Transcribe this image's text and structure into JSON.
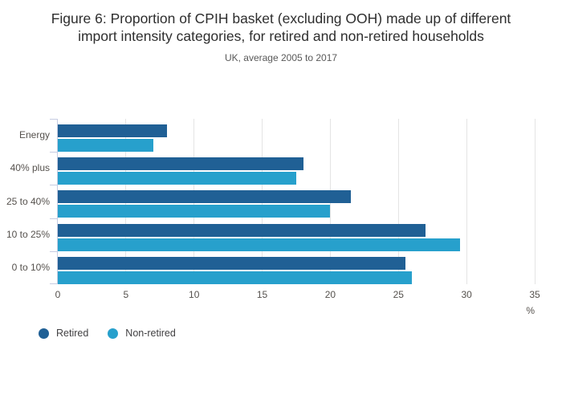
{
  "header": {
    "title_line1": "Figure 6: Proportion of CPIH basket (excluding OOH) made up of different",
    "title_line2": "import intensity categories, for retired and non-retired households",
    "subtitle": "UK, average 2005 to 2017"
  },
  "chart_data": {
    "type": "bar",
    "orientation": "horizontal",
    "title": "Figure 6: Proportion of CPIH basket (excluding OOH) made up of different import intensity categories, for retired and non-retired households",
    "subtitle": "UK, average 2005 to 2017",
    "categories": [
      "Energy",
      "40% plus",
      "25 to 40%",
      "10 to 25%",
      "0 to 10%"
    ],
    "series": [
      {
        "name": "Retired",
        "color": "#206095",
        "values": [
          8,
          18,
          21.5,
          27,
          25.5
        ]
      },
      {
        "name": "Non-retired",
        "color": "#27a0cc",
        "values": [
          7,
          17.5,
          20,
          29.5,
          26
        ]
      }
    ],
    "xlabel": "%",
    "ylabel": "",
    "xlim": [
      0,
      35
    ],
    "xticks": [
      0,
      5,
      10,
      15,
      20,
      25,
      30,
      35
    ],
    "grid": true,
    "legend_position": "bottom-left",
    "colors": {
      "retired": "#206095",
      "non_retired": "#27a0cc",
      "gridline": "#e4e4e4",
      "axis": "#c6cce2",
      "label_text": "#55514d"
    }
  }
}
